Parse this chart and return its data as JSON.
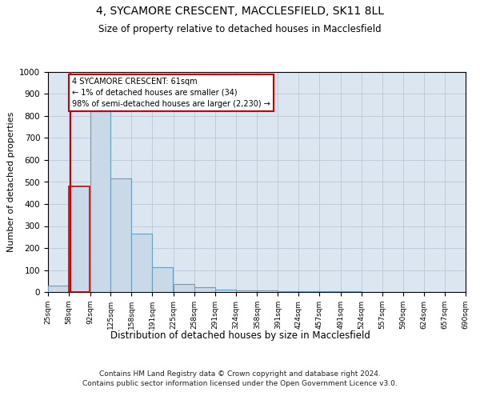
{
  "title1": "4, SYCAMORE CRESCENT, MACCLESFIELD, SK11 8LL",
  "title2": "Size of property relative to detached houses in Macclesfield",
  "xlabel": "Distribution of detached houses by size in Macclesfield",
  "ylabel": "Number of detached properties",
  "footer": "Contains HM Land Registry data © Crown copyright and database right 2024.\nContains public sector information licensed under the Open Government Licence v3.0.",
  "annotation_title": "4 SYCAMORE CRESCENT: 61sqm",
  "annotation_line1": "← 1% of detached houses are smaller (34)",
  "annotation_line2": "98% of semi-detached houses are larger (2,230) →",
  "property_size": 61,
  "bin_edges": [
    25,
    58,
    92,
    125,
    158,
    191,
    225,
    258,
    291,
    324,
    358,
    391,
    424,
    457,
    491,
    524,
    557,
    590,
    624,
    657,
    690
  ],
  "bar_heights": [
    28,
    480,
    820,
    515,
    265,
    113,
    37,
    22,
    12,
    8,
    8,
    2,
    2,
    2,
    2,
    1,
    1,
    0,
    0,
    0
  ],
  "bar_color": "#c9d9e8",
  "bar_edge_color": "#6a9dbf",
  "highlight_bar_index": 1,
  "highlight_edge_color": "#cc0000",
  "annotation_box_edge_color": "#cc0000",
  "annotation_box_face_color": "#ffffff",
  "grid_color": "#b8c8d8",
  "background_color": "#dce6f0",
  "ylim": [
    0,
    1000
  ],
  "yticks": [
    0,
    100,
    200,
    300,
    400,
    500,
    600,
    700,
    800,
    900,
    1000
  ]
}
